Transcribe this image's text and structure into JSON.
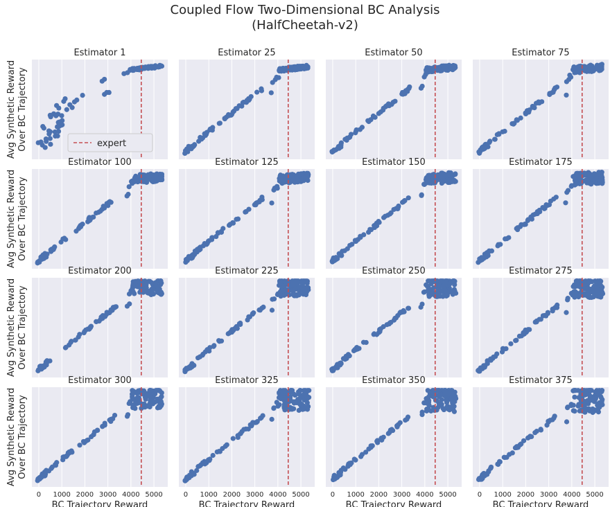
{
  "figure": {
    "title_line1": "Coupled Flow Two-Dimensional BC Analysis",
    "title_line2": "(HalfCheetah-v2)",
    "xlabel": "BC Trajectory Reward",
    "ylabel_line1": "Avg Synthetic Reward",
    "ylabel_line2": "Over BC Trajectory",
    "legend_label": "expert",
    "x_ticks": [
      "0",
      "1000",
      "2000",
      "3000",
      "4000",
      "5000"
    ]
  },
  "colors": {
    "panel_bg": "#eaeaf2",
    "grid": "#ffffff",
    "point": "#4c72b0",
    "expert_line": "#c44e52",
    "text": "#262626"
  },
  "chart_data": {
    "type": "scatter",
    "grid": "4x4 small multiples",
    "x_axis": {
      "label": "BC Trajectory Reward",
      "lim": [
        -300,
        5600
      ],
      "ticks": [
        0,
        1000,
        2000,
        3000,
        4000,
        5000
      ],
      "grid": true
    },
    "y_axis": {
      "label": "Avg Synthetic Reward Over BC Trajectory",
      "ticks_shown": false
    },
    "expert_reference": {
      "label": "expert",
      "x": 4450,
      "style": "dashed vertical line"
    },
    "legend": {
      "panel": "Estimator 1",
      "placement": "lower-center"
    },
    "panels": [
      {
        "title": "Estimator 1",
        "shape": "noisy",
        "cluster_spread": 0.02
      },
      {
        "title": "Estimator 25",
        "shape": "linear",
        "cluster_spread": 0.02
      },
      {
        "title": "Estimator 50",
        "shape": "linear",
        "cluster_spread": 0.03
      },
      {
        "title": "Estimator 75",
        "shape": "linear",
        "cluster_spread": 0.04
      },
      {
        "title": "Estimator 100",
        "shape": "linear",
        "cluster_spread": 0.05
      },
      {
        "title": "Estimator 125",
        "shape": "linear",
        "cluster_spread": 0.05
      },
      {
        "title": "Estimator 150",
        "shape": "linear",
        "cluster_spread": 0.06
      },
      {
        "title": "Estimator 175",
        "shape": "linear",
        "cluster_spread": 0.07
      },
      {
        "title": "Estimator 200",
        "shape": "linear",
        "cluster_spread": 0.09
      },
      {
        "title": "Estimator 225",
        "shape": "linear",
        "cluster_spread": 0.1
      },
      {
        "title": "Estimator 250",
        "shape": "linear",
        "cluster_spread": 0.11
      },
      {
        "title": "Estimator 275",
        "shape": "linear",
        "cluster_spread": 0.12
      },
      {
        "title": "Estimator 300",
        "shape": "linear",
        "cluster_spread": 0.13
      },
      {
        "title": "Estimator 325",
        "shape": "linear",
        "cluster_spread": 0.15
      },
      {
        "title": "Estimator 350",
        "shape": "linear",
        "cluster_spread": 0.16
      },
      {
        "title": "Estimator 375",
        "shape": "linear",
        "cluster_spread": 0.17
      }
    ]
  }
}
